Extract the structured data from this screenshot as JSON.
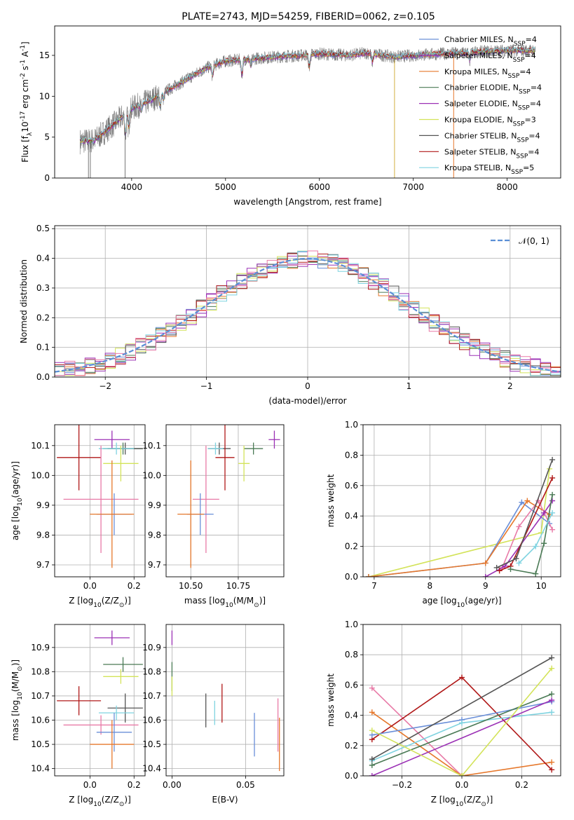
{
  "chart_data": {
    "title": "PLATE=2743, MJD=54259, FIBERID=0062, z=0.105",
    "colors": {
      "chabrier_miles": "#6a8fd8",
      "salpeter_miles": "#6a8fd8",
      "kroupa_miles": "#e6782c",
      "chabrier_elodie": "#4a7a55",
      "salpeter_elodie": "#9b30b5",
      "kroupa_elodie": "#d3e35a",
      "chabrier_stelib": "#555555",
      "salpeter_stelib": "#b01818",
      "kroupa_stelib": "#7fd3e0",
      "pink": "#e87aa7",
      "gaussian": "#5b8fd6"
    },
    "panels": [
      {
        "id": "spectrum",
        "type": "line",
        "xlabel": "wavelength [Angstrom, rest frame]",
        "ylabel": "Flux [f$_\\lambda$10$^{-17}$ erg cm$^{-2}$ s$^{-1}$ A$^{-1}$]",
        "xlim": [
          3180,
          8570
        ],
        "ylim": [
          0,
          18.6
        ],
        "xticks": [
          4000,
          5000,
          6000,
          7000,
          8000
        ],
        "yticks": [
          0,
          5,
          10,
          15
        ],
        "xtick_labels": [
          "4000",
          "5000",
          "6000",
          "7000",
          "8000"
        ],
        "ytick_labels": [
          "0",
          "5",
          "10",
          "15"
        ],
        "grid": false,
        "legend_position": "upper right",
        "legend": [
          {
            "label": "Chabrier MILES, N$_{SSP}$=4",
            "color": "#6a8fd8"
          },
          {
            "label": "Salpeter MILES, N$_{SSP}$=4",
            "color": "#9b30b5"
          },
          {
            "label": "Kroupa MILES, N$_{SSP}$=4",
            "color": "#e6782c"
          },
          {
            "label": "Chabrier ELODIE, N$_{SSP}$=4",
            "color": "#4a7a55"
          },
          {
            "label": "Salpeter ELODIE, N$_{SSP}$=4",
            "color": "#9b30b5"
          },
          {
            "label": "Kroupa ELODIE, N$_{SSP}$=3",
            "color": "#d3e35a"
          },
          {
            "label": "Chabrier STELIB, N$_{SSP}$=4",
            "color": "#555555"
          },
          {
            "label": "Salpeter STELIB, N$_{SSP}$=4",
            "color": "#b01818"
          },
          {
            "label": "Kroupa STELIB, N$_{SSP}$=5",
            "color": "#7fd3e0"
          }
        ],
        "continuum_x": [
          3450,
          3600,
          3800,
          4000,
          4200,
          4500,
          4800,
          5000,
          5200,
          5500,
          5800,
          6000,
          6300,
          6500,
          6800,
          7000,
          7300,
          7500,
          8000,
          8300
        ],
        "continuum_y": [
          4.5,
          4.6,
          6.5,
          8.5,
          9.5,
          11.5,
          13.5,
          14.3,
          14.5,
          14.8,
          15.0,
          15.2,
          15.0,
          15.3,
          14.8,
          15.0,
          15.2,
          15.3,
          15.6,
          15.6
        ],
        "data_color": "#777777"
      },
      {
        "id": "residual_hist",
        "type": "histogram",
        "xlabel": "(data-model)/error",
        "ylabel": "Normed distribution",
        "xlim": [
          -2.5,
          2.5
        ],
        "ylim": [
          0,
          0.51
        ],
        "xticks": [
          -2,
          -1,
          0,
          1,
          2
        ],
        "yticks": [
          0,
          0.1,
          0.2,
          0.3,
          0.4,
          0.5
        ],
        "xtick_labels": [
          "−2",
          "−1",
          "0",
          "1",
          "2"
        ],
        "ytick_labels": [
          "0.0",
          "0.1",
          "0.2",
          "0.3",
          "0.4",
          "0.5"
        ],
        "grid": true,
        "gaussian_label": "𝒩(0, 1)",
        "legend_position": "upper right",
        "bin_width": 0.1
      },
      {
        "id": "age_vs_Z",
        "type": "errorbar",
        "xlabel": "Z [log$_{10}$(Z/Z$_\\odot$)]",
        "ylabel": "age  [log$_{10}$(age/yr)]",
        "xlim": [
          -0.16,
          0.25
        ],
        "ylim": [
          9.66,
          10.17
        ],
        "xticks": [
          0.0,
          0.2
        ],
        "yticks": [
          9.7,
          9.8,
          9.9,
          10.0,
          10.1
        ],
        "xtick_labels": [
          "0.0",
          "0.2"
        ],
        "ytick_labels": [
          "9.7",
          "9.8",
          "9.9",
          "10.0",
          "10.1"
        ],
        "grid": true,
        "points": [
          {
            "x": 0.1,
            "y": 10.12,
            "xerr": 0.08,
            "yerr": 0.03,
            "color": "#9b30b5"
          },
          {
            "x": 0.15,
            "y": 10.09,
            "xerr": 0.09,
            "yerr": 0.02,
            "color": "#4a7a55"
          },
          {
            "x": 0.16,
            "y": 10.09,
            "xerr": 0.08,
            "yerr": 0.02,
            "color": "#555555"
          },
          {
            "x": 0.12,
            "y": 10.09,
            "xerr": 0.08,
            "yerr": 0.02,
            "color": "#7fd3e0"
          },
          {
            "x": -0.05,
            "y": 10.06,
            "xerr": 0.1,
            "yerr": 0.11,
            "color": "#b01818"
          },
          {
            "x": 0.14,
            "y": 10.04,
            "xerr": 0.08,
            "yerr": 0.06,
            "color": "#d3e35a"
          },
          {
            "x": 0.05,
            "y": 9.92,
            "xerr": 0.17,
            "yerr": 0.18,
            "color": "#e87aa7"
          },
          {
            "x": 0.11,
            "y": 9.87,
            "xerr": 0.08,
            "yerr": 0.07,
            "color": "#6a8fd8"
          },
          {
            "x": 0.1,
            "y": 9.87,
            "xerr": 0.1,
            "yerr": 0.18,
            "color": "#e6782c"
          }
        ]
      },
      {
        "id": "age_vs_mass",
        "type": "errorbar",
        "xlabel": "mass [log$_{10}$(M/M$_\\odot$)]",
        "ylabel": "",
        "xlim": [
          10.37,
          10.99
        ],
        "ylim": [
          9.66,
          10.17
        ],
        "xticks": [
          10.5,
          10.75
        ],
        "yticks": [
          9.7,
          9.8,
          9.9,
          10.0,
          10.1
        ],
        "xtick_labels": [
          "10.50",
          "10.75"
        ],
        "ytick_labels": [
          "9.7",
          "9.8",
          "9.9",
          "10.0",
          "10.1"
        ],
        "grid": true,
        "points": [
          {
            "x": 10.94,
            "y": 10.12,
            "xerr": 0.03,
            "yerr": 0.03,
            "color": "#9b30b5"
          },
          {
            "x": 10.83,
            "y": 10.09,
            "xerr": 0.05,
            "yerr": 0.02,
            "color": "#4a7a55"
          },
          {
            "x": 10.65,
            "y": 10.09,
            "xerr": 0.06,
            "yerr": 0.02,
            "color": "#555555"
          },
          {
            "x": 10.63,
            "y": 10.09,
            "xerr": 0.04,
            "yerr": 0.02,
            "color": "#7fd3e0"
          },
          {
            "x": 10.68,
            "y": 10.06,
            "xerr": 0.05,
            "yerr": 0.11,
            "color": "#b01818"
          },
          {
            "x": 10.78,
            "y": 10.04,
            "xerr": 0.03,
            "yerr": 0.06,
            "color": "#d3e35a"
          },
          {
            "x": 10.58,
            "y": 9.92,
            "xerr": 0.07,
            "yerr": 0.18,
            "color": "#e87aa7"
          },
          {
            "x": 10.55,
            "y": 9.87,
            "xerr": 0.07,
            "yerr": 0.07,
            "color": "#6a8fd8"
          },
          {
            "x": 10.5,
            "y": 9.87,
            "xerr": 0.07,
            "yerr": 0.18,
            "color": "#e6782c"
          }
        ]
      },
      {
        "id": "weight_vs_age",
        "type": "line",
        "xlabel": "age  [log$_{10}$(age/yr)]",
        "ylabel": "mass weight",
        "xlim": [
          6.8,
          10.35
        ],
        "ylim": [
          0,
          1.0
        ],
        "xticks": [
          7,
          8,
          9,
          10
        ],
        "yticks": [
          0,
          0.2,
          0.4,
          0.6,
          0.8,
          1.0
        ],
        "xtick_labels": [
          "7",
          "8",
          "9",
          "10"
        ],
        "ytick_labels": [
          "0.0",
          "0.2",
          "0.4",
          "0.6",
          "0.8",
          "1.0"
        ],
        "grid": true,
        "series": [
          {
            "color": "#d3e35a",
            "x": [
              6.9,
              10.0,
              10.15
            ],
            "y": [
              0.0,
              0.29,
              0.71
            ]
          },
          {
            "color": "#6a8fd8",
            "x": [
              6.9,
              9.0,
              9.65,
              10.15
            ],
            "y": [
              0.0,
              0.09,
              0.49,
              0.35
            ]
          },
          {
            "color": "#e6782c",
            "x": [
              6.9,
              9.0,
              9.75,
              10.15
            ],
            "y": [
              0.0,
              0.09,
              0.5,
              0.41
            ]
          },
          {
            "color": "#e87aa7",
            "x": [
              9.3,
              9.6,
              9.95,
              10.2
            ],
            "y": [
              0.06,
              0.33,
              0.5,
              0.31
            ]
          },
          {
            "color": "#9b30b5",
            "x": [
              9.0,
              9.35,
              10.05,
              10.2
            ],
            "y": [
              0.0,
              0.07,
              0.42,
              0.5
            ]
          },
          {
            "color": "#b01818",
            "x": [
              9.25,
              9.45,
              10.2
            ],
            "y": [
              0.04,
              0.07,
              0.65
            ]
          },
          {
            "color": "#555555",
            "x": [
              9.2,
              9.55,
              10.2
            ],
            "y": [
              0.06,
              0.12,
              0.77
            ]
          },
          {
            "color": "#4a7a55",
            "x": [
              9.45,
              9.9,
              10.05,
              10.2
            ],
            "y": [
              0.05,
              0.02,
              0.22,
              0.54
            ]
          },
          {
            "color": "#7fd3e0",
            "x": [
              9.6,
              9.9,
              10.2
            ],
            "y": [
              0.09,
              0.2,
              0.42
            ]
          }
        ]
      },
      {
        "id": "mass_vs_Z",
        "type": "errorbar",
        "xlabel": "Z [log$_{10}$(Z/Z$_\\odot$)]",
        "ylabel": "mass [log$_{10}$(M/M$_\\odot$)]",
        "xlim": [
          -0.16,
          0.25
        ],
        "ylim": [
          10.37,
          10.995
        ],
        "xticks": [
          0.0,
          0.2
        ],
        "yticks": [
          10.4,
          10.5,
          10.6,
          10.7,
          10.8,
          10.9
        ],
        "xtick_labels": [
          "0.0",
          "0.2"
        ],
        "ytick_labels": [
          "10.4",
          "10.5",
          "10.6",
          "10.7",
          "10.8",
          "10.9"
        ],
        "grid": true,
        "points": [
          {
            "x": 0.1,
            "y": 10.94,
            "xerr": 0.08,
            "yerr": 0.03,
            "color": "#9b30b5"
          },
          {
            "x": 0.15,
            "y": 10.83,
            "xerr": 0.09,
            "yerr": 0.03,
            "color": "#4a7a55"
          },
          {
            "x": 0.14,
            "y": 10.78,
            "xerr": 0.08,
            "yerr": 0.03,
            "color": "#d3e35a"
          },
          {
            "x": -0.05,
            "y": 10.68,
            "xerr": 0.1,
            "yerr": 0.06,
            "color": "#b01818"
          },
          {
            "x": 0.16,
            "y": 10.65,
            "xerr": 0.08,
            "yerr": 0.06,
            "color": "#555555"
          },
          {
            "x": 0.12,
            "y": 10.63,
            "xerr": 0.08,
            "yerr": 0.03,
            "color": "#7fd3e0"
          },
          {
            "x": 0.05,
            "y": 10.58,
            "xerr": 0.17,
            "yerr": 0.04,
            "color": "#e87aa7"
          },
          {
            "x": 0.11,
            "y": 10.55,
            "xerr": 0.08,
            "yerr": 0.08,
            "color": "#6a8fd8"
          },
          {
            "x": 0.1,
            "y": 10.5,
            "xerr": 0.1,
            "yerr": 0.1,
            "color": "#e6782c"
          }
        ]
      },
      {
        "id": "mass_vs_ebv",
        "type": "errorbar",
        "xlabel": "E(B-V)",
        "ylabel": "",
        "xlim": [
          -0.004,
          0.076
        ],
        "ylim": [
          10.37,
          10.995
        ],
        "xticks": [
          0.0,
          0.05
        ],
        "yticks": [
          10.4,
          10.5,
          10.6,
          10.7,
          10.8,
          10.9
        ],
        "xtick_labels": [
          "0.00",
          "0.05"
        ],
        "ytick_labels": [
          "10.4",
          "10.5",
          "10.6",
          "10.7",
          "10.8",
          "10.9"
        ],
        "grid": true,
        "points": [
          {
            "x": 0.0,
            "y": 10.94,
            "xerr": 0,
            "yerr": 0.03,
            "color": "#9b30b5"
          },
          {
            "x": 0.0,
            "y": 10.78,
            "xerr": 0,
            "yerr": 0.06,
            "color": "#4a7a55"
          },
          {
            "x": 0.0,
            "y": 10.74,
            "xerr": 0,
            "yerr": 0.04,
            "color": "#d3e35a"
          },
          {
            "x": 0.023,
            "y": 10.64,
            "xerr": 0,
            "yerr": 0.07,
            "color": "#555555"
          },
          {
            "x": 0.029,
            "y": 10.63,
            "xerr": 0,
            "yerr": 0.05,
            "color": "#7fd3e0"
          },
          {
            "x": 0.034,
            "y": 10.67,
            "xerr": 0,
            "yerr": 0.08,
            "color": "#b01818"
          },
          {
            "x": 0.056,
            "y": 10.54,
            "xerr": 0,
            "yerr": 0.09,
            "color": "#6a8fd8"
          },
          {
            "x": 0.072,
            "y": 10.58,
            "xerr": 0,
            "yerr": 0.11,
            "color": "#e87aa7"
          },
          {
            "x": 0.073,
            "y": 10.5,
            "xerr": 0,
            "yerr": 0.11,
            "color": "#e6782c"
          }
        ]
      },
      {
        "id": "weight_vs_Z",
        "type": "line",
        "xlabel": "Z [log$_{10}$(Z/Z$_\\odot$)]",
        "ylabel": "mass weight",
        "xlim": [
          -0.33,
          0.33
        ],
        "ylim": [
          0,
          1.0
        ],
        "xticks": [
          -0.2,
          0.0,
          0.2
        ],
        "yticks": [
          0,
          0.2,
          0.4,
          0.6,
          0.8,
          1.0
        ],
        "xtick_labels": [
          "−0.2",
          "0.0",
          "0.2"
        ],
        "ytick_labels": [
          "0.0",
          "0.2",
          "0.4",
          "0.6",
          "0.8",
          "1.0"
        ],
        "grid": true,
        "series": [
          {
            "color": "#e87aa7",
            "x": [
              -0.3,
              0.0
            ],
            "y": [
              0.58,
              0.0
            ]
          },
          {
            "color": "#e6782c",
            "x": [
              -0.3,
              0.0,
              0.3
            ],
            "y": [
              0.42,
              0.0,
              0.09
            ]
          },
          {
            "color": "#b01818",
            "x": [
              -0.3,
              0.0,
              0.3
            ],
            "y": [
              0.24,
              0.65,
              0.04
            ]
          },
          {
            "color": "#6a8fd8",
            "x": [
              -0.3,
              0.0,
              0.3
            ],
            "y": [
              0.27,
              0.37,
              0.49
            ]
          },
          {
            "color": "#7fd3e0",
            "x": [
              -0.3,
              0.0,
              0.3
            ],
            "y": [
              0.1,
              0.35,
              0.42
            ]
          },
          {
            "color": "#555555",
            "x": [
              -0.3,
              0.3
            ],
            "y": [
              0.11,
              0.78
            ]
          },
          {
            "color": "#4a7a55",
            "x": [
              -0.3,
              0.3
            ],
            "y": [
              0.07,
              0.54
            ]
          },
          {
            "color": "#9b30b5",
            "x": [
              -0.3,
              0.3
            ],
            "y": [
              0.0,
              0.5
            ]
          },
          {
            "color": "#d3e35a",
            "x": [
              -0.3,
              0.0,
              0.3
            ],
            "y": [
              0.3,
              0.0,
              0.71
            ]
          }
        ]
      }
    ]
  }
}
